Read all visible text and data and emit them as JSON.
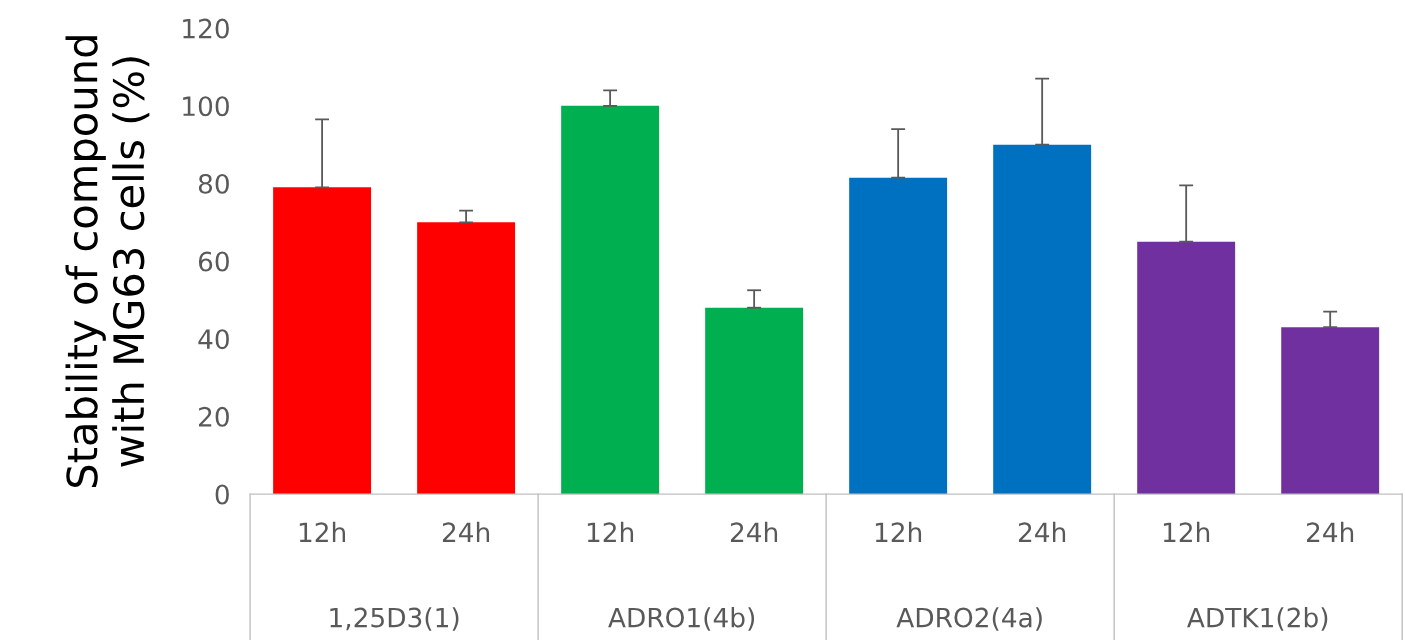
{
  "chart_data": {
    "type": "bar",
    "ylabel": "Stability of compound\nwith MG63 cells (%)",
    "categories": [
      "12h",
      "24h",
      "12h",
      "24h",
      "12h",
      "24h",
      "12h",
      "24h"
    ],
    "values": [
      79,
      70,
      100,
      48,
      81.5,
      90,
      65,
      43
    ],
    "colors": [
      "#ff0000",
      "#ff0000",
      "#00b050",
      "#00b050",
      "#0070c0",
      "#0070c0",
      "#7030a0",
      "#7030a0"
    ],
    "errors": [
      [
        79,
        96.5
      ],
      [
        70,
        73
      ],
      [
        100,
        104
      ],
      [
        48,
        52.5
      ],
      [
        81.5,
        94
      ],
      [
        90,
        107
      ],
      [
        65,
        79.5
      ],
      [
        43,
        47
      ]
    ],
    "annotations": [
      "1,25D3(1)",
      "ADRO1(4b)",
      "ADRO2(4a)",
      "ADTK1(2b)"
    ],
    "ylim": [
      0,
      120
    ],
    "yticks": [
      0,
      20,
      40,
      60,
      80,
      100,
      120
    ],
    "grid": false,
    "legend": false
  }
}
